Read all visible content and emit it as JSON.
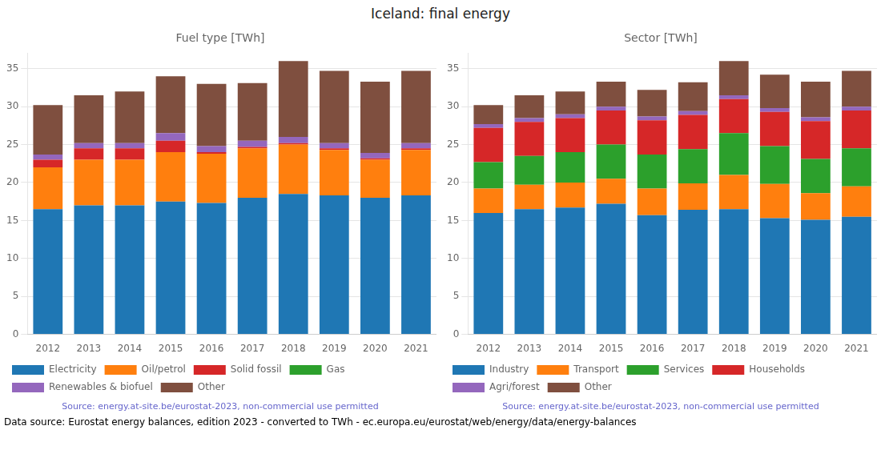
{
  "title": "Iceland: final energy",
  "annotations": [
    "Data source: Eurostat energy balances, edition 2023 - converted to TWh - ec.europa.eu/eurostat/web/energy/data/energy-balances"
  ],
  "chart_data": [
    {
      "type": "bar",
      "title": "Fuel type [TWh]",
      "categories": [
        2012,
        2013,
        2014,
        2015,
        2016,
        2017,
        2018,
        2019,
        2020,
        2021
      ],
      "series": [
        {
          "name": "Electricity",
          "color": "#1f77b4",
          "values": [
            16.5,
            17.0,
            17.0,
            17.5,
            17.3,
            18.0,
            18.5,
            18.3,
            18.0,
            18.3
          ]
        },
        {
          "name": "Oil/petrol",
          "color": "#ff7f0e",
          "values": [
            5.5,
            6.0,
            6.0,
            6.5,
            6.5,
            6.5,
            6.5,
            6.0,
            5.0,
            6.0
          ]
        },
        {
          "name": "Solid fossil",
          "color": "#d62728",
          "values": [
            1.0,
            1.5,
            1.5,
            1.5,
            0.2,
            0.2,
            0.2,
            0.2,
            0.2,
            0.2
          ]
        },
        {
          "name": "Gas",
          "color": "#2ca02c",
          "values": [
            0.0,
            0.0,
            0.0,
            0.0,
            0.0,
            0.0,
            0.0,
            0.0,
            0.0,
            0.0
          ]
        },
        {
          "name": "Renewables & biofuel",
          "color": "#9467bd",
          "values": [
            0.7,
            0.7,
            0.7,
            1.0,
            0.8,
            0.8,
            0.8,
            0.7,
            0.7,
            0.7
          ]
        },
        {
          "name": "Other",
          "color": "#7f4f3f",
          "values": [
            6.5,
            6.3,
            6.8,
            7.5,
            8.2,
            7.6,
            10.0,
            9.5,
            9.4,
            9.5
          ]
        }
      ],
      "stacked": true,
      "ylim": [
        0,
        37
      ],
      "yticks": [
        0,
        5,
        10,
        15,
        20,
        25,
        30,
        35
      ],
      "grid": true,
      "legend": "bottom",
      "annotations": [
        "Source: energy.at-site.be/eurostat-2023, non-commercial use permitted"
      ]
    },
    {
      "type": "bar",
      "title": "Sector [TWh]",
      "categories": [
        2012,
        2013,
        2014,
        2015,
        2016,
        2017,
        2018,
        2019,
        2020,
        2021
      ],
      "series": [
        {
          "name": "Industry",
          "color": "#1f77b4",
          "values": [
            16.0,
            16.5,
            16.7,
            17.2,
            15.7,
            16.4,
            16.5,
            15.3,
            15.1,
            15.5
          ]
        },
        {
          "name": "Transport",
          "color": "#ff7f0e",
          "values": [
            3.2,
            3.2,
            3.3,
            3.3,
            3.5,
            3.5,
            4.5,
            4.5,
            3.5,
            4.0
          ]
        },
        {
          "name": "Services",
          "color": "#2ca02c",
          "values": [
            3.5,
            3.8,
            4.0,
            4.5,
            4.5,
            4.5,
            5.5,
            5.0,
            4.5,
            5.0
          ]
        },
        {
          "name": "Households",
          "color": "#d62728",
          "values": [
            4.5,
            4.5,
            4.5,
            4.5,
            4.5,
            4.5,
            4.5,
            4.5,
            5.0,
            5.0
          ]
        },
        {
          "name": "Agri/forest",
          "color": "#9467bd",
          "values": [
            0.5,
            0.5,
            0.5,
            0.5,
            0.5,
            0.5,
            0.5,
            0.5,
            0.5,
            0.5
          ]
        },
        {
          "name": "Other",
          "color": "#7f4f3f",
          "values": [
            2.5,
            3.0,
            3.0,
            3.3,
            3.5,
            3.8,
            4.5,
            4.4,
            4.7,
            4.7
          ]
        }
      ],
      "stacked": true,
      "ylim": [
        0,
        37
      ],
      "yticks": [
        0,
        5,
        10,
        15,
        20,
        25,
        30,
        35
      ],
      "grid": true,
      "legend": "bottom",
      "annotations": [
        "Source: energy.at-site.be/eurostat-2023, non-commercial use permitted"
      ]
    }
  ]
}
